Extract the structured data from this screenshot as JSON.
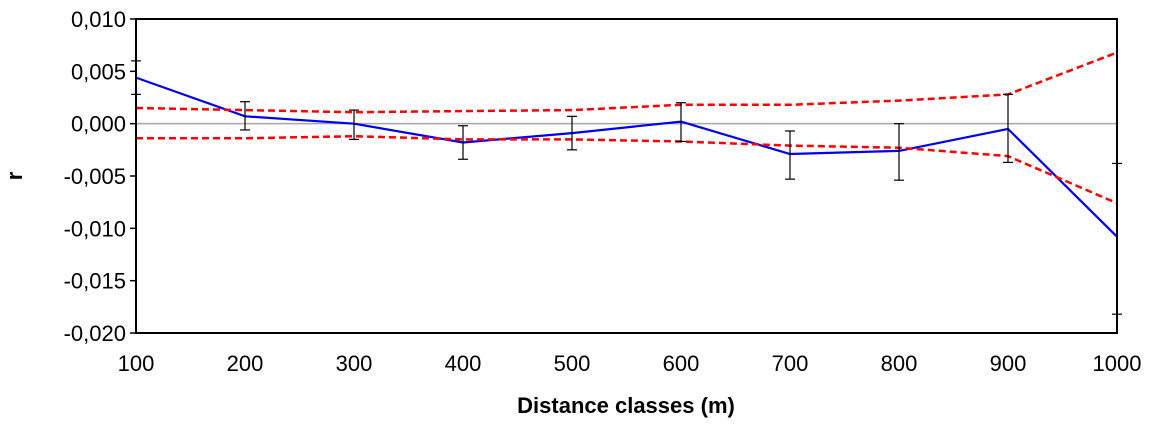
{
  "chart_data": {
    "type": "line",
    "title": "",
    "xlabel": "Distance classes (m)",
    "ylabel": "r",
    "x": [
      100,
      200,
      300,
      400,
      500,
      600,
      700,
      800,
      900,
      1000
    ],
    "x_tick_labels": [
      "100",
      "200",
      "300",
      "400",
      "500",
      "600",
      "700",
      "800",
      "900",
      "1000"
    ],
    "y_ticks": [
      0.01,
      0.005,
      0.0,
      -0.005,
      -0.01,
      -0.015,
      -0.02
    ],
    "y_tick_labels": [
      "0,010",
      "0,005",
      "0,000",
      "-0,005",
      "-0,010",
      "-0,015",
      "-0,020"
    ],
    "ylim": [
      -0.02,
      0.01
    ],
    "xlim": [
      100,
      1000
    ],
    "grid": false,
    "zero_line": true,
    "series": [
      {
        "values": [
          0.0044,
          0.0007,
          0.0,
          -0.0018,
          -0.0009,
          0.0002,
          -0.0029,
          -0.0026,
          -0.0005,
          -0.0108
        ],
        "error_low": [
          0.0028,
          -0.0006,
          -0.0015,
          -0.0034,
          -0.0025,
          -0.0017,
          -0.0053,
          -0.0054,
          -0.0037,
          -0.0182
        ],
        "error_high": [
          0.006,
          0.0021,
          0.0013,
          -0.0002,
          0.0007,
          0.002,
          -0.0007,
          0.0,
          0.0028,
          -0.0038
        ],
        "color": "#0000ee",
        "style": "solid"
      },
      {
        "values": [
          0.0015,
          0.0013,
          0.0011,
          0.0012,
          0.0013,
          0.0018,
          0.0018,
          0.0022,
          0.0028,
          0.0068
        ],
        "color": "#ff0000",
        "style": "dashed"
      },
      {
        "values": [
          -0.0014,
          -0.0014,
          -0.0012,
          -0.0015,
          -0.0015,
          -0.0017,
          -0.0021,
          -0.0023,
          -0.0031,
          -0.0076
        ],
        "color": "#ff0000",
        "style": "dashed"
      }
    ]
  }
}
